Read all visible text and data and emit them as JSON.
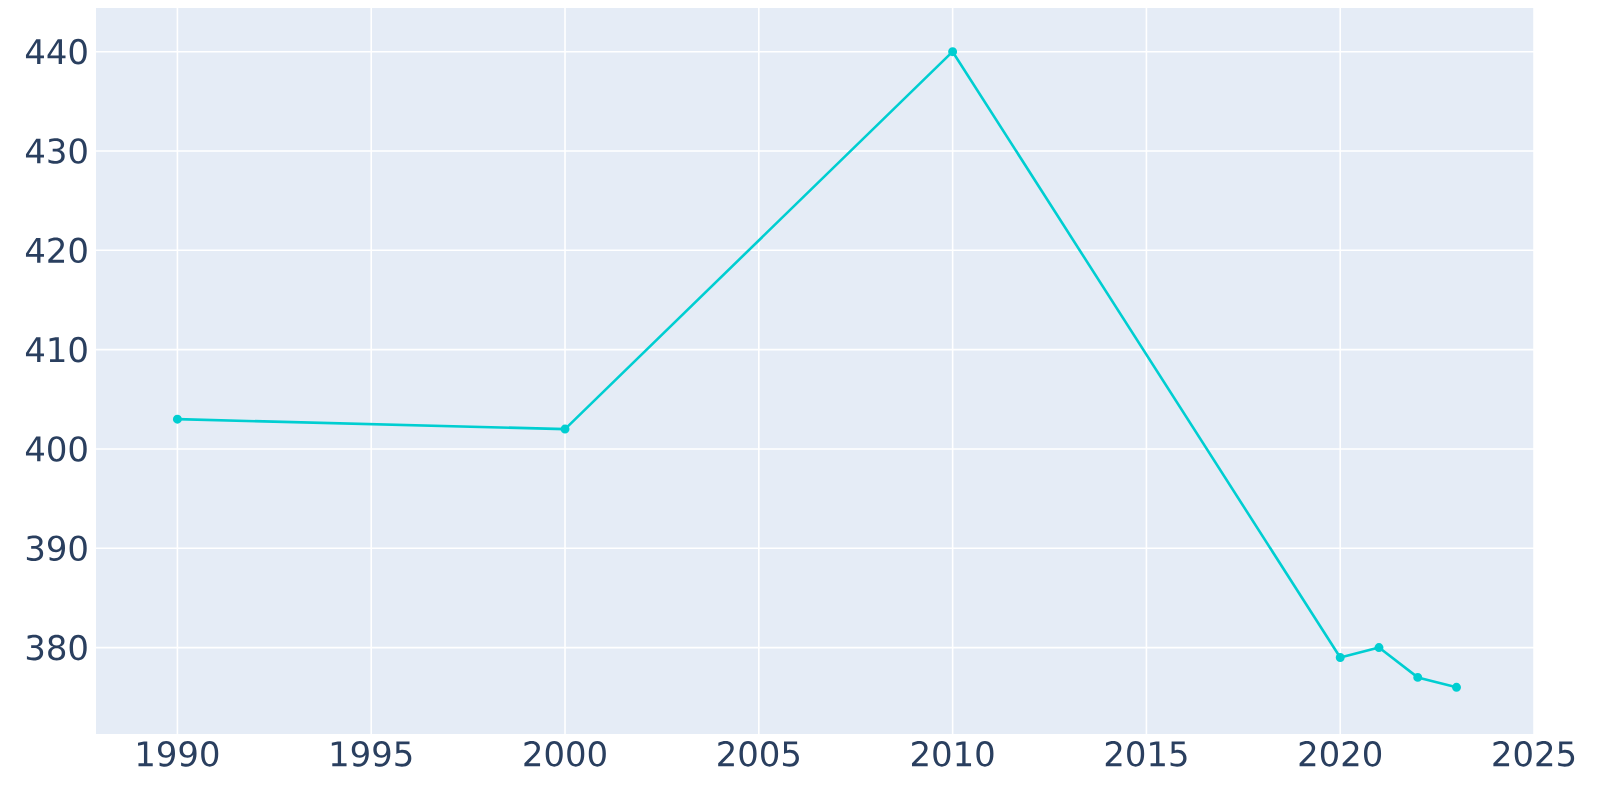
{
  "chart_data": {
    "type": "line",
    "x": [
      1990,
      2000,
      2010,
      2020,
      2021,
      2022,
      2023
    ],
    "series": [
      {
        "color": "#00ced1",
        "values": [
          403,
          402,
          440,
          379,
          380,
          377,
          376
        ]
      }
    ],
    "xlim": [
      1987.9,
      2025
    ],
    "ylim": [
      371.3,
      444.4
    ],
    "xticks": [
      1990,
      1995,
      2000,
      2005,
      2010,
      2015,
      2020,
      2025
    ],
    "yticks": [
      380,
      390,
      400,
      410,
      420,
      430,
      440
    ],
    "grid": true,
    "marker": "circle",
    "line_style": "solid"
  }
}
